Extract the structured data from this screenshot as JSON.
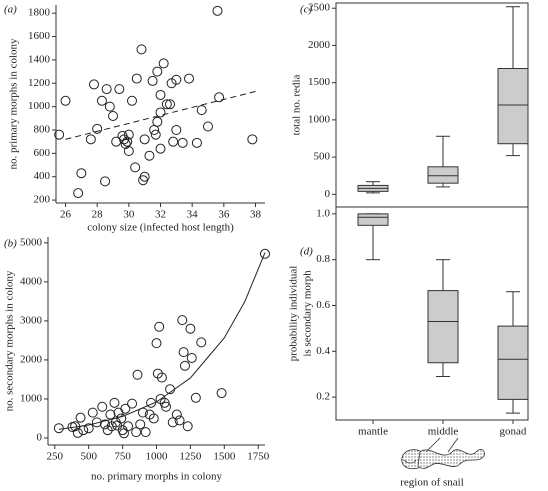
{
  "chart_data": [
    {
      "type": "scatter",
      "panel_label": "(a)",
      "xlabel": "colony size (infected host length)",
      "ylabel": "no. primary morphs in colony",
      "xlim": [
        25.4,
        38.6
      ],
      "ylim": [
        175,
        1870
      ],
      "xticks": [
        26,
        28,
        30,
        32,
        34,
        36,
        38
      ],
      "yticks": [
        200,
        400,
        600,
        800,
        1000,
        1200,
        1400,
        1600,
        1800
      ],
      "x": [
        25.6,
        26,
        26.8,
        27,
        27.6,
        27.8,
        28,
        28.3,
        28.5,
        28.6,
        28.8,
        29,
        29.2,
        29.4,
        29.6,
        29.7,
        29.8,
        29.9,
        30,
        30,
        30.2,
        30.4,
        30.5,
        30.8,
        30.9,
        31,
        31,
        31.3,
        31.5,
        31.6,
        31.7,
        31.8,
        31.8,
        32,
        32,
        32,
        32.2,
        32.4,
        32.6,
        32.7,
        32.8,
        33,
        33,
        33.4,
        33.8,
        34.3,
        34.6,
        35,
        35.6,
        35.7,
        37.8
      ],
      "y": [
        760,
        1050,
        260,
        430,
        720,
        1190,
        810,
        1050,
        360,
        1150,
        1000,
        920,
        700,
        1150,
        750,
        720,
        680,
        700,
        760,
        620,
        1050,
        480,
        1240,
        1490,
        370,
        400,
        720,
        580,
        1220,
        800,
        760,
        1300,
        870,
        1100,
        950,
        640,
        1370,
        1020,
        1020,
        1200,
        700,
        1230,
        800,
        690,
        1240,
        690,
        970,
        830,
        1820,
        1080,
        720
      ],
      "fit": {
        "style": "dashed",
        "x": [
          26,
          38
        ],
        "y": [
          720,
          1130
        ]
      }
    },
    {
      "type": "scatter",
      "panel_label": "(b)",
      "xlabel": "no. primary morphs in colony",
      "ylabel": "no. secondary morphs in colony",
      "xlim": [
        200,
        1800
      ],
      "ylim": [
        -180,
        5150
      ],
      "xticks": [
        250,
        500,
        750,
        1000,
        1250,
        1500,
        1750
      ],
      "yticks": [
        0,
        1000,
        2000,
        3000,
        4000,
        5000
      ],
      "x": [
        280,
        380,
        400,
        420,
        440,
        460,
        500,
        530,
        560,
        600,
        620,
        640,
        660,
        670,
        690,
        700,
        710,
        720,
        740,
        750,
        760,
        770,
        790,
        820,
        850,
        860,
        880,
        900,
        920,
        950,
        960,
        980,
        1000,
        1010,
        1020,
        1030,
        1040,
        1060,
        1070,
        1100,
        1120,
        1150,
        1170,
        1190,
        1200,
        1210,
        1230,
        1250,
        1260,
        1290,
        1330,
        1480,
        1800
      ],
      "y": [
        250,
        280,
        300,
        130,
        520,
        200,
        250,
        650,
        400,
        800,
        350,
        200,
        600,
        300,
        900,
        400,
        320,
        650,
        500,
        200,
        120,
        750,
        300,
        880,
        150,
        1620,
        350,
        650,
        150,
        600,
        900,
        500,
        2430,
        1650,
        2850,
        1000,
        1550,
        900,
        800,
        1250,
        400,
        600,
        450,
        3020,
        2200,
        1850,
        300,
        2800,
        2050,
        1030,
        2450,
        1150,
        4720
      ],
      "fit": {
        "style": "solid",
        "x": [
          280,
          500,
          750,
          1000,
          1250,
          1500,
          1650,
          1800
        ],
        "y": [
          220,
          331,
          553,
          922,
          1538,
          2566,
          3487,
          4750
        ]
      }
    },
    {
      "type": "box",
      "panel_label": "(c)",
      "ylabel": "total no. redia",
      "categories": [
        null,
        null,
        null
      ],
      "ylim": [
        -170,
        2570
      ],
      "yticks": [
        0,
        500,
        1000,
        1500,
        2000,
        2500
      ],
      "boxes": [
        {
          "min": 20,
          "q1": 40,
          "median": 80,
          "q3": 120,
          "max": 170
        },
        {
          "min": 100,
          "q1": 150,
          "median": 250,
          "q3": 370,
          "max": 780
        },
        {
          "min": 520,
          "q1": 680,
          "median": 1200,
          "q3": 1690,
          "max": 2520
        }
      ],
      "color": "#cccccc"
    },
    {
      "type": "box",
      "panel_label": "(d)",
      "ylabel": [
        "probability individual",
        "is secondary morph"
      ],
      "xlabel": "region of snail",
      "categories": [
        "mantle",
        "middle",
        "gonad"
      ],
      "ylim": [
        0.1,
        1.03
      ],
      "yticks": [
        0.2,
        0.4,
        0.6,
        0.8,
        {
          "value": 1,
          "label": "1.0"
        }
      ],
      "boxes": [
        {
          "min": 0.8,
          "q1": 0.95,
          "median": 0.985,
          "q3": 1.0,
          "max": 1.0
        },
        {
          "min": 0.29,
          "q1": 0.35,
          "median": 0.53,
          "q3": 0.665,
          "max": 0.8
        },
        {
          "min": 0.13,
          "q1": 0.19,
          "median": 0.365,
          "q3": 0.51,
          "max": 0.66
        }
      ],
      "color": "#cccccc"
    }
  ]
}
